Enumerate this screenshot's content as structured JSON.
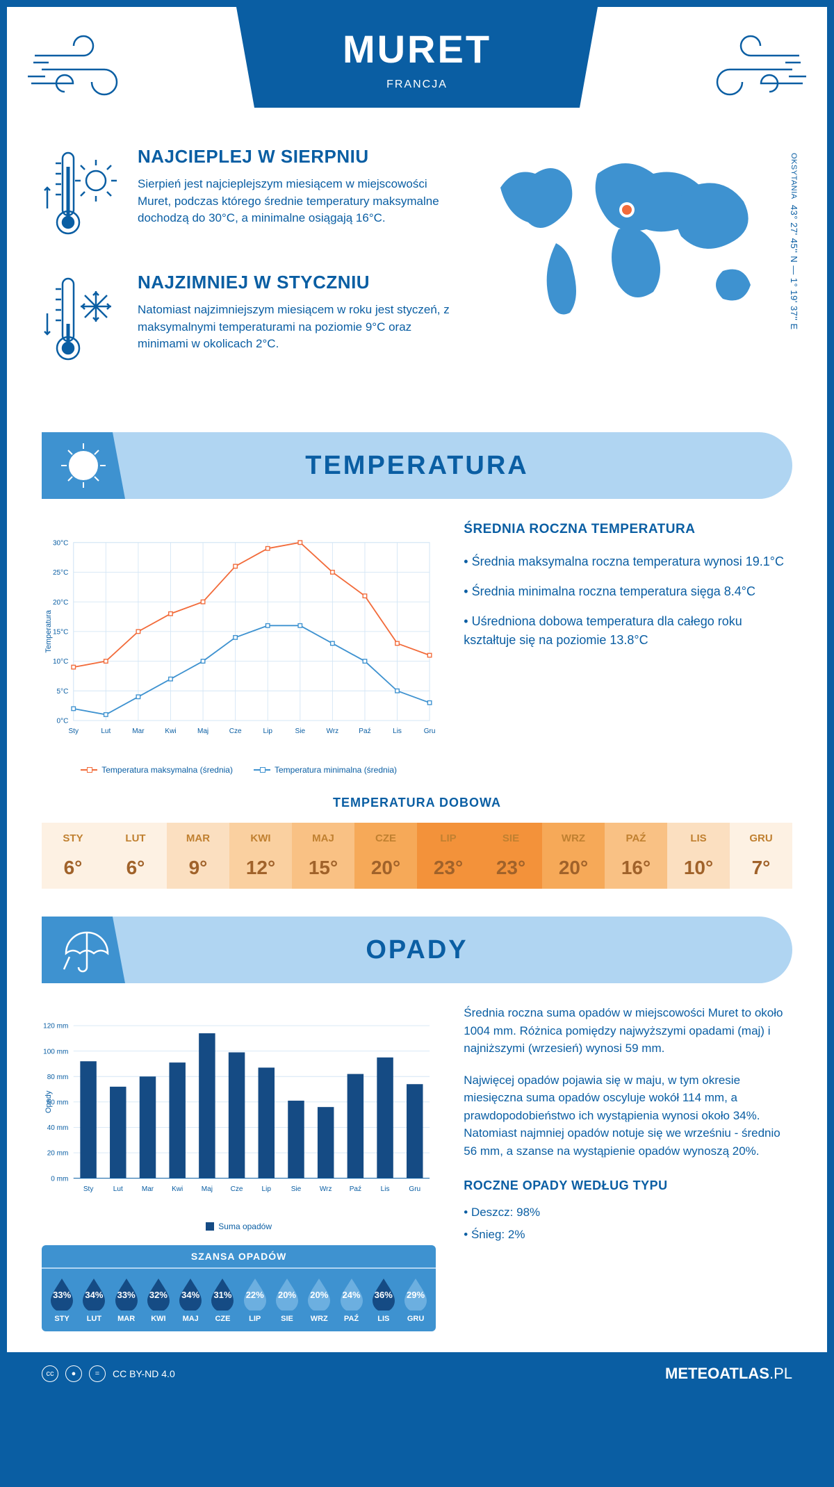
{
  "header": {
    "city": "MURET",
    "country": "FRANCJA"
  },
  "coords": {
    "lat": "43° 27' 45'' N — 1° 19' 37'' E",
    "region": "OKSYTANIA"
  },
  "intro": {
    "hot": {
      "title": "NAJCIEPLEJ W SIERPNIU",
      "text": "Sierpień jest najcieplejszym miesiącem w miejscowości Muret, podczas którego średnie temperatury maksymalne dochodzą do 30°C, a minimalne osiągają 16°C."
    },
    "cold": {
      "title": "NAJZIMNIEJ W STYCZNIU",
      "text": "Natomiast najzimniejszym miesiącem w roku jest styczeń, z maksymalnymi temperaturami na poziomie 9°C oraz minimami w okolicach 2°C."
    }
  },
  "temp_section": {
    "title": "TEMPERATURA",
    "right": {
      "title": "ŚREDNIA ROCZNA TEMPERATURA",
      "p1": "• Średnia maksymalna roczna temperatura wynosi 19.1°C",
      "p2": "• Średnia minimalna roczna temperatura sięga 8.4°C",
      "p3": "• Uśredniona dobowa temperatura dla całego roku kształtuje się na poziomie 13.8°C"
    },
    "chart": {
      "months": [
        "Sty",
        "Lut",
        "Mar",
        "Kwi",
        "Maj",
        "Cze",
        "Lip",
        "Sie",
        "Wrz",
        "Paź",
        "Lis",
        "Gru"
      ],
      "max": [
        9,
        10,
        15,
        18,
        20,
        26,
        29,
        30,
        25,
        21,
        13,
        11
      ],
      "min": [
        2,
        1,
        4,
        7,
        10,
        14,
        16,
        16,
        13,
        10,
        5,
        3
      ],
      "ylabel": "Temperatura",
      "ylim": [
        0,
        30
      ],
      "ytick": 5,
      "color_max": "#f26b3a",
      "color_min": "#3e92d0",
      "grid_color": "#d4e6f5",
      "legend_max": "Temperatura maksymalna (średnia)",
      "legend_min": "Temperatura minimalna (średnia)"
    },
    "daily": {
      "title": "TEMPERATURA DOBOWA",
      "months": [
        "STY",
        "LUT",
        "MAR",
        "KWI",
        "MAJ",
        "CZE",
        "LIP",
        "SIE",
        "WRZ",
        "PAŹ",
        "LIS",
        "GRU"
      ],
      "values": [
        "6°",
        "6°",
        "9°",
        "12°",
        "15°",
        "20°",
        "23°",
        "23°",
        "20°",
        "16°",
        "10°",
        "7°"
      ],
      "colors": [
        "#fdf1e3",
        "#fdf1e3",
        "#fbdfc0",
        "#fad0a0",
        "#f9c184",
        "#f6a958",
        "#f3923a",
        "#f3923a",
        "#f6a958",
        "#f9c184",
        "#fbdfc0",
        "#fdf1e3"
      ]
    }
  },
  "precip_section": {
    "title": "OPADY",
    "chart": {
      "months": [
        "Sty",
        "Lut",
        "Mar",
        "Kwi",
        "Maj",
        "Cze",
        "Lip",
        "Sie",
        "Wrz",
        "Paź",
        "Lis",
        "Gru"
      ],
      "values": [
        92,
        72,
        80,
        91,
        114,
        99,
        87,
        61,
        56,
        82,
        95,
        74
      ],
      "ylabel": "Opady",
      "ylim": [
        0,
        120
      ],
      "ytick": 20,
      "bar_color": "#154b84",
      "grid_color": "#d4e6f5",
      "legend": "Suma opadów"
    },
    "text": {
      "p1": "Średnia roczna suma opadów w miejscowości Muret to około 1004 mm. Różnica pomiędzy najwyższymi opadami (maj) i najniższymi (wrzesień) wynosi 59 mm.",
      "p2": "Najwięcej opadów pojawia się w maju, w tym okresie miesięczna suma opadów oscyluje wokół 114 mm, a prawdopodobieństwo ich wystąpienia wynosi około 34%. Natomiast najmniej opadów notuje się we wrześniu - średnio 56 mm, a szanse na wystąpienie opadów wynoszą 20%."
    },
    "chance": {
      "title": "SZANSA OPADÓW",
      "months": [
        "STY",
        "LUT",
        "MAR",
        "KWI",
        "MAJ",
        "CZE",
        "LIP",
        "SIE",
        "WRZ",
        "PAŹ",
        "LIS",
        "GRU"
      ],
      "values": [
        "33%",
        "34%",
        "33%",
        "32%",
        "34%",
        "31%",
        "22%",
        "20%",
        "20%",
        "24%",
        "36%",
        "29%"
      ],
      "drop_dark": "#154b84",
      "drop_light": "#6cafe0"
    },
    "types": {
      "title": "ROCZNE OPADY WEDŁUG TYPU",
      "p1": "• Deszcz: 98%",
      "p2": "• Śnieg: 2%"
    }
  },
  "footer": {
    "license": "CC BY-ND 4.0",
    "brand": "METEOATLAS",
    "tld": ".PL"
  }
}
